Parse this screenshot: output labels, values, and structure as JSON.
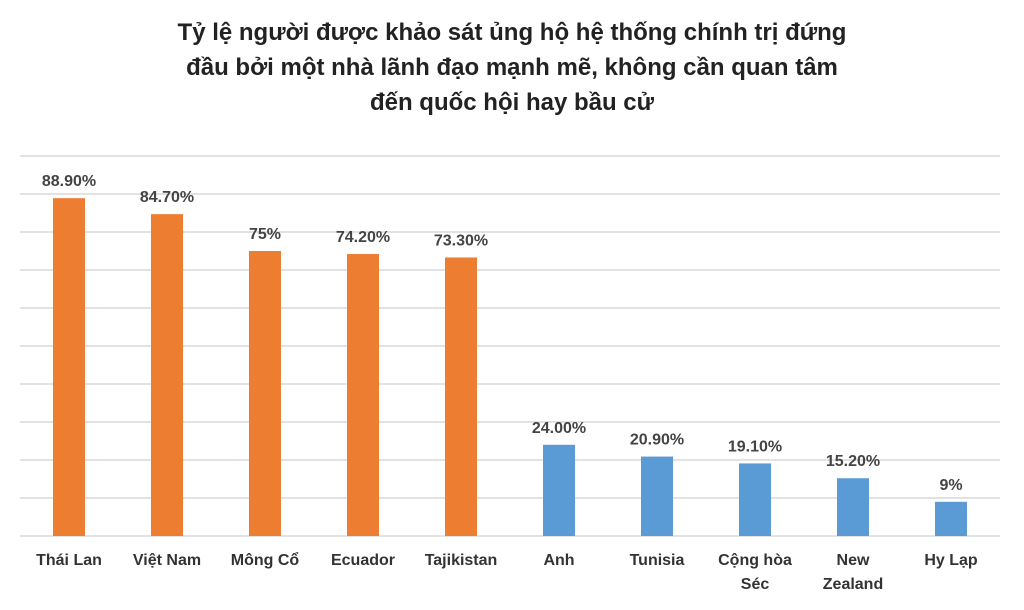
{
  "chart_data": {
    "type": "bar",
    "title": [
      "Tỷ lệ người được khảo sát ủng hộ hệ thống chính trị đứng",
      "đầu bởi một nhà lãnh đạo mạnh mẽ, không cần quan tâm",
      "đến quốc hội hay bầu cử"
    ],
    "categories": [
      "Thái Lan",
      "Việt Nam",
      "Mông Cổ",
      "Ecuador",
      "Tajikistan",
      "Anh",
      "Tunisia",
      "Cộng hòa Séc",
      "New Zealand",
      "Hy Lạp"
    ],
    "values": [
      88.9,
      84.7,
      75,
      74.2,
      73.3,
      24,
      20.9,
      19.1,
      15.2,
      9
    ],
    "value_labels": [
      "88.90%",
      "84.70%",
      "75%",
      "74.20%",
      "73.30%",
      "24.00%",
      "20.90%",
      "19.10%",
      "15.20%",
      "9%"
    ],
    "colors": [
      "#ed7d31",
      "#ed7d31",
      "#ed7d31",
      "#ed7d31",
      "#ed7d31",
      "#5b9bd5",
      "#5b9bd5",
      "#5b9bd5",
      "#5b9bd5",
      "#5b9bd5"
    ],
    "ylim": [
      0,
      100
    ],
    "yticks": [
      0,
      10,
      20,
      30,
      40,
      50,
      60,
      70,
      80,
      90,
      100
    ],
    "grid": true
  }
}
